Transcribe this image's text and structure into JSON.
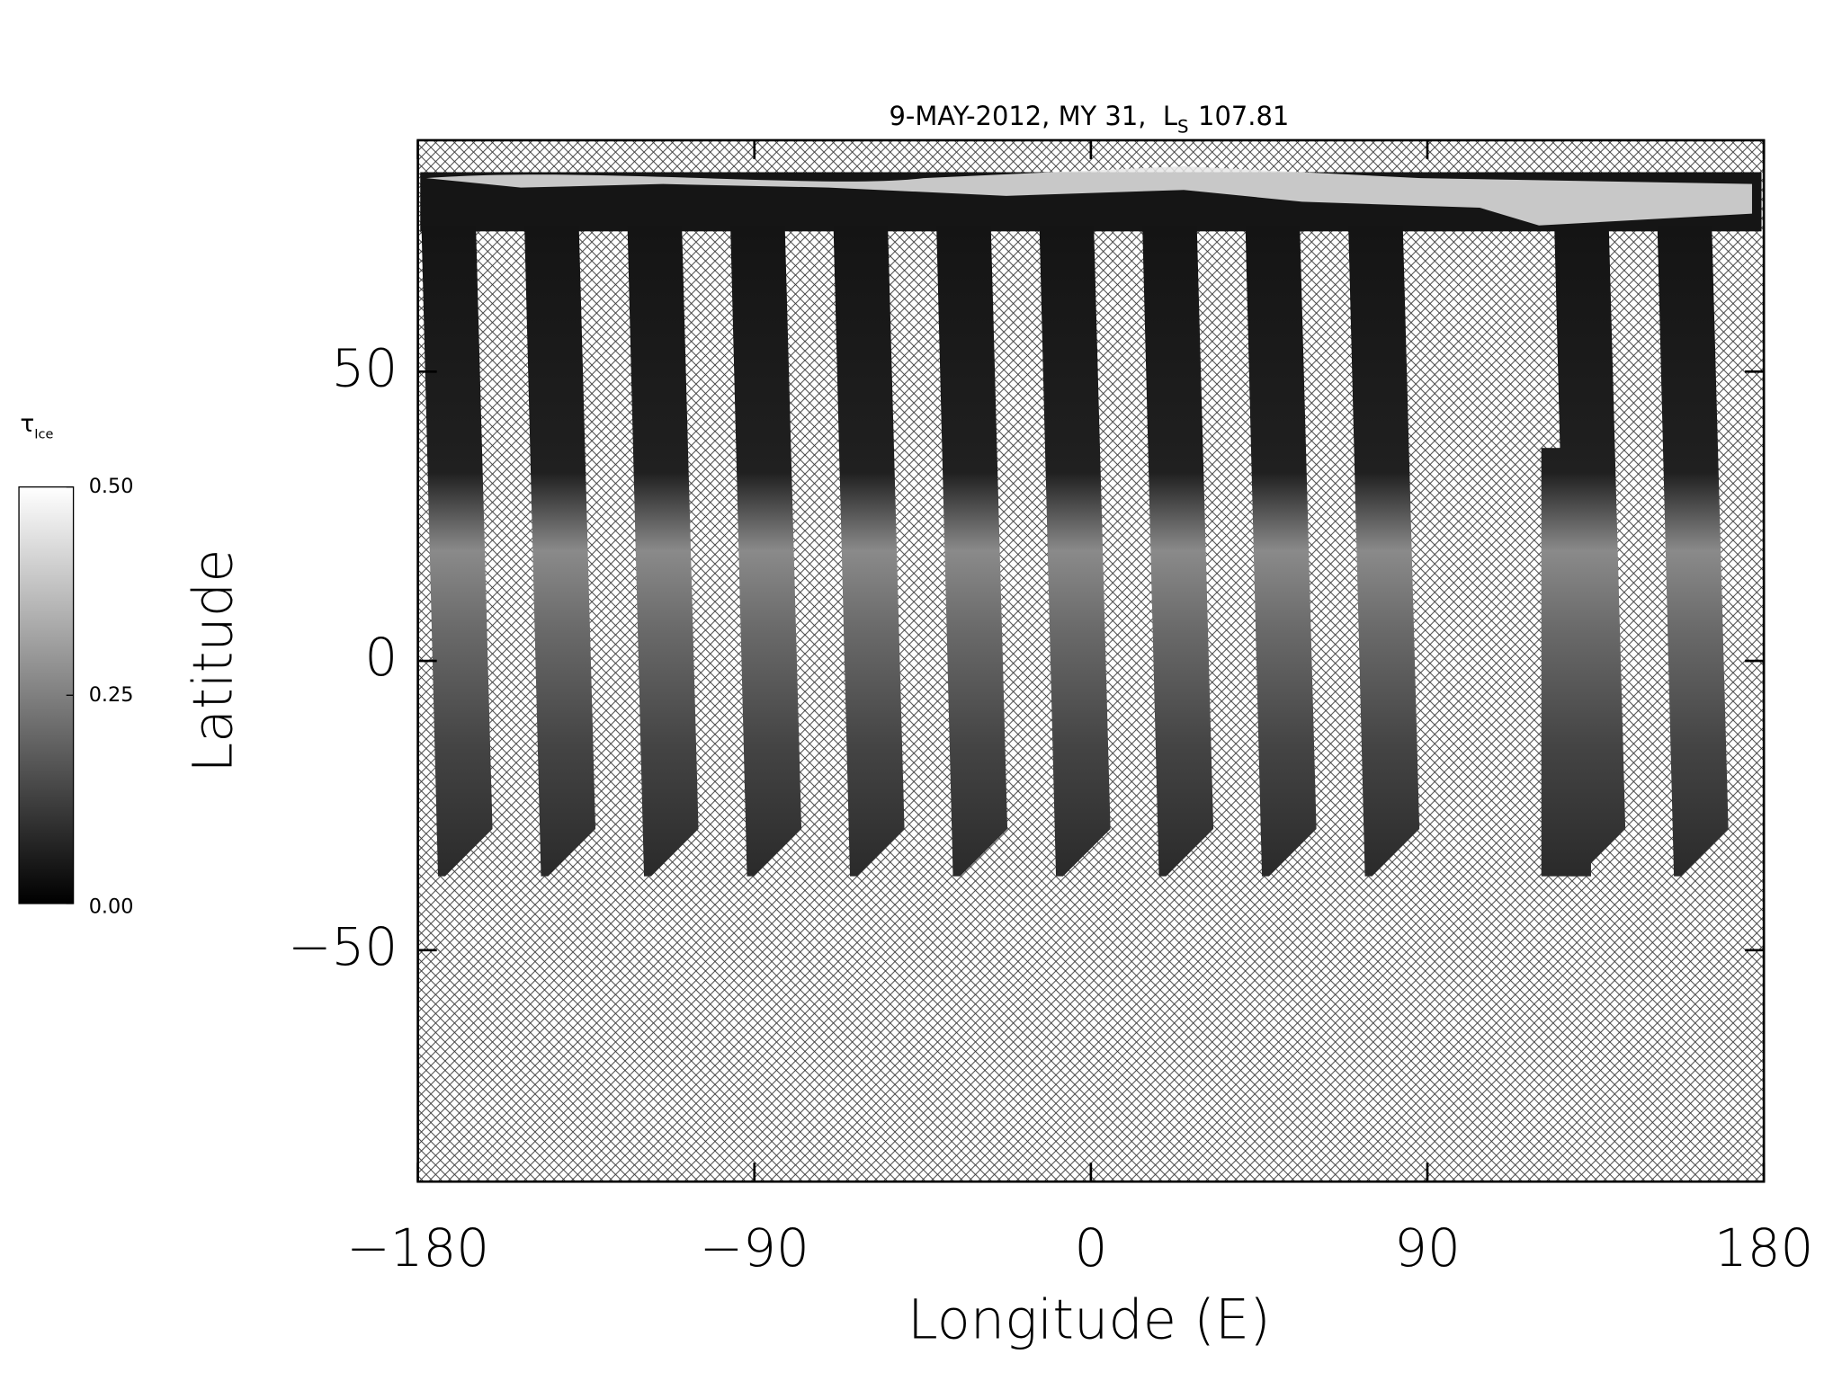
{
  "chart_data": {
    "type": "map",
    "title": "9-MAY-2012, MY 31,  L",
    "title_subscript": "S",
    "title_suffix": "107.81",
    "xlabel": "Longitude (E)",
    "ylabel": "Latitude",
    "xlim": [
      -180,
      180
    ],
    "ylim": [
      -90,
      90
    ],
    "xticks": [
      {
        "value": -180,
        "label": "−180"
      },
      {
        "value": -90,
        "label": "−90"
      },
      0,
      90,
      180
    ],
    "yticks": [
      {
        "value": -50,
        "label": "−50"
      },
      0,
      50
    ],
    "colorbar": {
      "label": "τ",
      "label_subscript": "Ice",
      "lim": [
        0,
        0.5
      ],
      "ticks": [
        {
          "value": 0,
          "label": "0.00"
        },
        {
          "value": 0.25,
          "label": "0.25"
        },
        {
          "value": 0.5,
          "label": "0.50"
        }
      ],
      "colors": [
        "#000000",
        "#ffffff"
      ]
    }
  }
}
